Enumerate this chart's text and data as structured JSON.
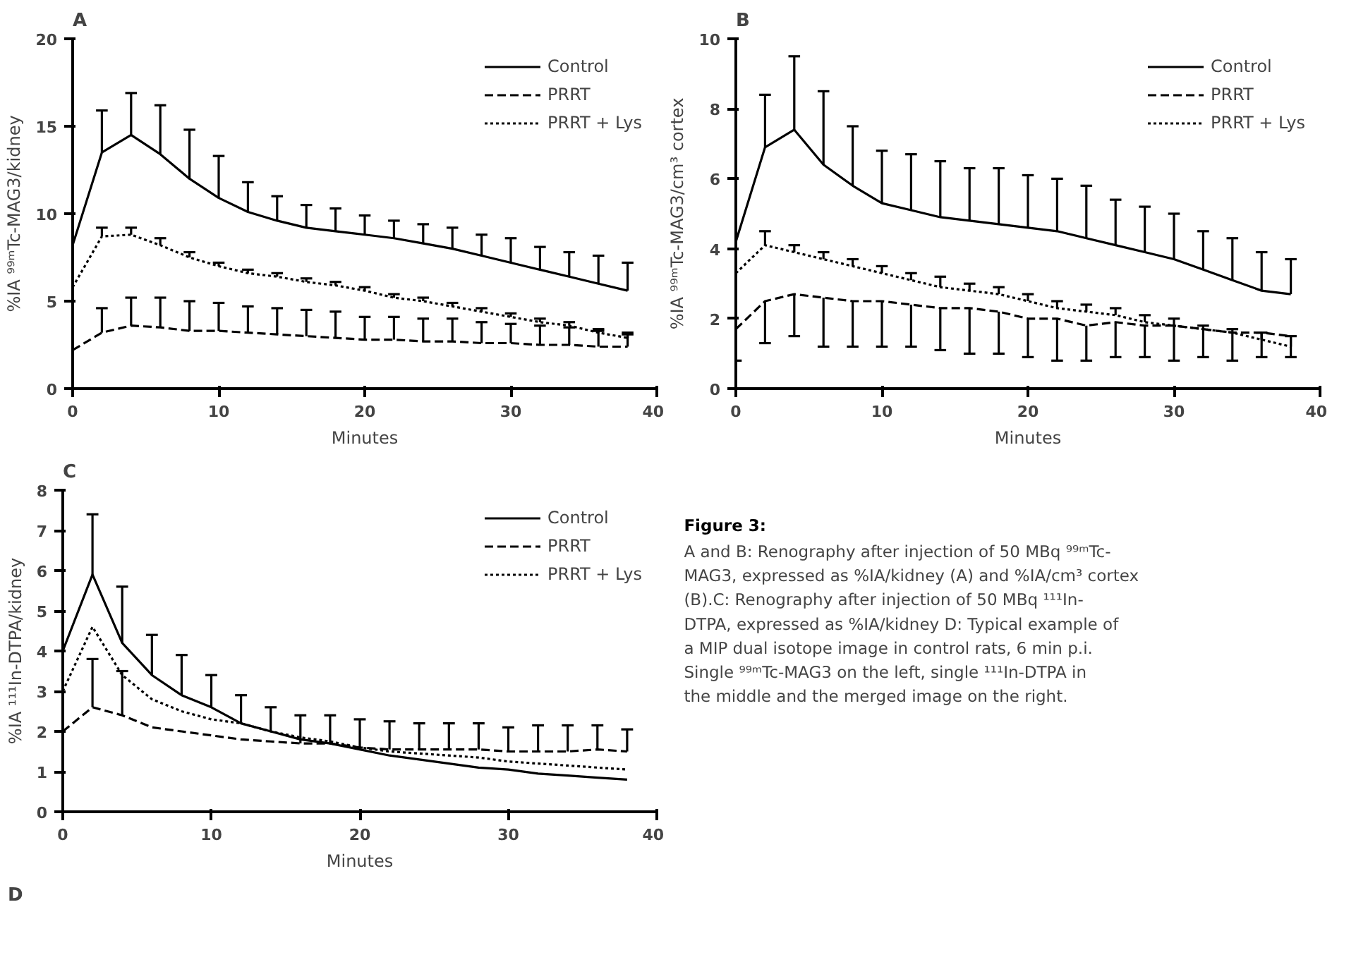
{
  "chart_data": [
    {
      "type": "line",
      "title": "A",
      "xlabel": "Minutes",
      "ylabel": "%IA ⁹⁹ᵐTc-MAG3/kidney",
      "x": [
        0,
        2,
        4,
        6,
        8,
        10,
        12,
        14,
        16,
        18,
        20,
        22,
        24,
        26,
        28,
        30,
        32,
        34,
        36,
        38
      ],
      "xlim": [
        0,
        40
      ],
      "xticks": [
        0,
        10,
        20,
        30,
        40
      ],
      "ylim": [
        0,
        20
      ],
      "yticks": [
        0,
        5,
        10,
        15,
        20
      ],
      "grid": false,
      "legend": "top right",
      "series": [
        {
          "name": "Control",
          "color": "#000000",
          "line_style": "solid",
          "values": [
            8.2,
            13.5,
            14.5,
            13.4,
            12.0,
            10.9,
            10.1,
            9.6,
            9.2,
            9.0,
            8.8,
            8.6,
            8.3,
            8.0,
            7.6,
            7.2,
            6.8,
            6.4,
            6.0,
            5.6
          ],
          "errors": [
            null,
            [
              13.5,
              15.9
            ],
            [
              14.5,
              16.9
            ],
            [
              13.4,
              16.2
            ],
            [
              12.0,
              14.8
            ],
            [
              10.9,
              13.3
            ],
            [
              10.1,
              11.8
            ],
            [
              9.6,
              11.0
            ],
            [
              9.2,
              10.5
            ],
            [
              9.0,
              10.3
            ],
            [
              8.8,
              9.9
            ],
            [
              8.6,
              9.6
            ],
            [
              8.3,
              9.4
            ],
            [
              8.0,
              9.2
            ],
            [
              7.6,
              8.8
            ],
            [
              7.2,
              8.6
            ],
            [
              6.8,
              8.1
            ],
            [
              6.4,
              7.8
            ],
            [
              6.0,
              7.6
            ],
            [
              5.6,
              7.2
            ]
          ]
        },
        {
          "name": "PRRT",
          "color": "#000000",
          "line_style": "dashed",
          "values": [
            2.2,
            3.2,
            3.6,
            3.5,
            3.3,
            3.3,
            3.2,
            3.1,
            3.0,
            2.9,
            2.8,
            2.8,
            2.7,
            2.7,
            2.6,
            2.6,
            2.5,
            2.5,
            2.4,
            2.4
          ],
          "errors": [
            null,
            [
              3.2,
              4.6
            ],
            [
              3.6,
              5.2
            ],
            [
              3.5,
              5.2
            ],
            [
              3.3,
              5.0
            ],
            [
              3.3,
              4.9
            ],
            [
              3.2,
              4.7
            ],
            [
              3.1,
              4.6
            ],
            [
              3.0,
              4.5
            ],
            [
              2.9,
              4.4
            ],
            [
              2.8,
              4.1
            ],
            [
              2.8,
              4.1
            ],
            [
              2.7,
              4.0
            ],
            [
              2.7,
              4.0
            ],
            [
              2.6,
              3.8
            ],
            [
              2.6,
              3.7
            ],
            [
              2.5,
              3.6
            ],
            [
              2.5,
              3.5
            ],
            [
              2.4,
              3.3
            ],
            [
              2.4,
              3.1
            ]
          ]
        },
        {
          "name": "PRRT + Lys",
          "color": "#000000",
          "line_style": "dotted",
          "values": [
            5.8,
            8.7,
            8.8,
            8.2,
            7.5,
            7.0,
            6.6,
            6.4,
            6.1,
            5.9,
            5.6,
            5.2,
            5.0,
            4.7,
            4.4,
            4.1,
            3.8,
            3.6,
            3.2,
            2.9
          ],
          "errors": [
            null,
            [
              8.7,
              9.2
            ],
            [
              8.8,
              9.2
            ],
            [
              8.2,
              8.6
            ],
            [
              7.5,
              7.8
            ],
            [
              7.0,
              7.2
            ],
            [
              6.6,
              6.8
            ],
            [
              6.4,
              6.6
            ],
            [
              6.1,
              6.3
            ],
            [
              5.9,
              6.1
            ],
            [
              5.6,
              5.8
            ],
            [
              5.2,
              5.4
            ],
            [
              5.0,
              5.2
            ],
            [
              4.7,
              4.9
            ],
            [
              4.4,
              4.6
            ],
            [
              4.1,
              4.3
            ],
            [
              3.8,
              4.0
            ],
            [
              3.6,
              3.8
            ],
            [
              3.2,
              3.4
            ],
            [
              2.9,
              3.2
            ]
          ]
        }
      ]
    },
    {
      "type": "line",
      "title": "B",
      "xlabel": "Minutes",
      "ylabel": "%IA ⁹⁹ᵐTc-MAG3/cm³ cortex",
      "x": [
        0,
        2,
        4,
        6,
        8,
        10,
        12,
        14,
        16,
        18,
        20,
        22,
        24,
        26,
        28,
        30,
        32,
        34,
        36,
        38
      ],
      "xlim": [
        0,
        40
      ],
      "xticks": [
        0,
        10,
        20,
        30,
        40
      ],
      "ylim": [
        0,
        10
      ],
      "yticks": [
        0,
        2,
        4,
        6,
        8,
        10
      ],
      "grid": false,
      "legend": "top right",
      "series": [
        {
          "name": "Control",
          "color": "#000000",
          "line_style": "solid",
          "values": [
            4.2,
            6.9,
            7.4,
            6.4,
            5.8,
            5.3,
            5.1,
            4.9,
            4.8,
            4.7,
            4.6,
            4.5,
            4.3,
            4.1,
            3.9,
            3.7,
            3.4,
            3.1,
            2.8,
            2.7
          ],
          "errors": [
            null,
            [
              6.9,
              8.4
            ],
            [
              7.4,
              9.5
            ],
            [
              6.4,
              8.5
            ],
            [
              5.8,
              7.5
            ],
            [
              5.3,
              6.8
            ],
            [
              5.1,
              6.7
            ],
            [
              4.9,
              6.5
            ],
            [
              4.8,
              6.3
            ],
            [
              4.7,
              6.3
            ],
            [
              4.6,
              6.1
            ],
            [
              4.5,
              6.0
            ],
            [
              4.3,
              5.8
            ],
            [
              4.1,
              5.4
            ],
            [
              3.9,
              5.2
            ],
            [
              3.7,
              5.0
            ],
            [
              3.4,
              4.5
            ],
            [
              3.1,
              4.3
            ],
            [
              2.8,
              3.9
            ],
            [
              2.7,
              3.7
            ]
          ]
        },
        {
          "name": "PRRT",
          "color": "#000000",
          "line_style": "dashed",
          "values": [
            1.7,
            2.5,
            2.7,
            2.6,
            2.5,
            2.5,
            2.4,
            2.3,
            2.3,
            2.2,
            2.0,
            2.0,
            1.8,
            1.9,
            1.8,
            1.8,
            1.7,
            1.6,
            1.6,
            1.5
          ],
          "errors": [
            [
              0.8,
              1.7
            ],
            [
              1.3,
              2.5
            ],
            [
              1.5,
              2.7
            ],
            [
              1.2,
              2.6
            ],
            [
              1.2,
              2.5
            ],
            [
              1.2,
              2.5
            ],
            [
              1.2,
              2.4
            ],
            [
              1.1,
              2.3
            ],
            [
              1.0,
              2.3
            ],
            [
              1.0,
              2.2
            ],
            [
              0.9,
              2.0
            ],
            [
              0.8,
              2.0
            ],
            [
              0.8,
              1.8
            ],
            [
              0.9,
              1.9
            ],
            [
              0.9,
              1.8
            ],
            [
              0.8,
              1.8
            ],
            [
              0.9,
              1.7
            ],
            [
              0.8,
              1.6
            ],
            [
              0.9,
              1.6
            ],
            [
              0.9,
              1.5
            ]
          ]
        },
        {
          "name": "PRRT + Lys",
          "color": "#000000",
          "line_style": "dotted",
          "values": [
            3.3,
            4.1,
            3.9,
            3.7,
            3.5,
            3.3,
            3.1,
            2.9,
            2.8,
            2.7,
            2.5,
            2.3,
            2.2,
            2.1,
            1.9,
            1.8,
            1.7,
            1.6,
            1.4,
            1.2
          ],
          "errors": [
            null,
            [
              4.1,
              4.5
            ],
            [
              3.9,
              4.1
            ],
            [
              3.7,
              3.9
            ],
            [
              3.5,
              3.7
            ],
            [
              3.3,
              3.5
            ],
            [
              3.1,
              3.3
            ],
            [
              2.9,
              3.2
            ],
            [
              2.8,
              3.0
            ],
            [
              2.7,
              2.9
            ],
            [
              2.5,
              2.7
            ],
            [
              2.3,
              2.5
            ],
            [
              2.2,
              2.4
            ],
            [
              2.1,
              2.3
            ],
            [
              1.9,
              2.1
            ],
            [
              1.8,
              2.0
            ],
            [
              1.7,
              1.8
            ],
            [
              1.6,
              1.7
            ],
            [
              1.4,
              1.6
            ],
            [
              1.2,
              1.5
            ]
          ]
        }
      ]
    },
    {
      "type": "line",
      "title": "C",
      "xlabel": "Minutes",
      "ylabel": "%IA ¹¹¹In-DTPA/kidney",
      "x": [
        0,
        2,
        4,
        6,
        8,
        10,
        12,
        14,
        16,
        18,
        20,
        22,
        24,
        26,
        28,
        30,
        32,
        34,
        36,
        38
      ],
      "xlim": [
        0,
        40
      ],
      "xticks": [
        0,
        10,
        20,
        30,
        40
      ],
      "ylim": [
        0,
        8
      ],
      "yticks": [
        0,
        1,
        2,
        3,
        4,
        5,
        6,
        7,
        8
      ],
      "grid": false,
      "legend": "top right",
      "series": [
        {
          "name": "Control",
          "color": "#000000",
          "line_style": "solid",
          "values": [
            4.0,
            5.9,
            4.2,
            3.4,
            2.9,
            2.6,
            2.2,
            2.0,
            1.8,
            1.7,
            1.55,
            1.4,
            1.3,
            1.2,
            1.1,
            1.05,
            0.95,
            0.9,
            0.85,
            0.8
          ],
          "errors": [
            null,
            [
              5.9,
              7.4
            ],
            [
              4.2,
              5.6
            ],
            [
              3.4,
              4.4
            ],
            [
              2.9,
              3.9
            ],
            [
              2.6,
              3.4
            ],
            [
              2.2,
              2.9
            ],
            [
              2.0,
              2.6
            ],
            null,
            null,
            null,
            null,
            null,
            null,
            null,
            null,
            null,
            null,
            null,
            null
          ]
        },
        {
          "name": "PRRT",
          "color": "#000000",
          "line_style": "dashed",
          "values": [
            2.0,
            2.6,
            2.4,
            2.1,
            2.0,
            1.9,
            1.8,
            1.75,
            1.7,
            1.7,
            1.6,
            1.55,
            1.55,
            1.55,
            1.55,
            1.5,
            1.5,
            1.5,
            1.55,
            1.5
          ],
          "errors": [
            null,
            [
              2.6,
              3.8
            ],
            [
              2.4,
              3.5
            ],
            null,
            null,
            null,
            null,
            null,
            [
              1.7,
              2.4
            ],
            [
              1.7,
              2.4
            ],
            [
              1.6,
              2.3
            ],
            [
              1.55,
              2.25
            ],
            [
              1.55,
              2.2
            ],
            [
              1.55,
              2.2
            ],
            [
              1.55,
              2.2
            ],
            [
              1.5,
              2.1
            ],
            [
              1.5,
              2.15
            ],
            [
              1.5,
              2.15
            ],
            [
              1.55,
              2.15
            ],
            [
              1.5,
              2.05
            ]
          ]
        },
        {
          "name": "PRRT + Lys",
          "color": "#000000",
          "line_style": "dotted",
          "values": [
            3.0,
            4.6,
            3.4,
            2.8,
            2.5,
            2.3,
            2.2,
            2.0,
            1.85,
            1.75,
            1.6,
            1.5,
            1.45,
            1.4,
            1.35,
            1.25,
            1.2,
            1.15,
            1.1,
            1.05
          ]
        }
      ]
    },
    {
      "type": "other",
      "title": "Figure 3:",
      "annotations": [
        "A and B: Renography after injection of 50 MBq ⁹⁹ᵐTc-MAG3, expressed as %IA/kidney (A) and %IA/cm³ cortex (B).C: Renography after injection of 50 MBq ¹¹¹In-DTPA, expressed as %IA/kidney D: Typical example of a MIP dual isotope image in control rats, 6 min p.i. Single ⁹⁹ᵐTc-MAG3 on the left, single ¹¹¹In-DTPA in the middle and the merged image on the right."
      ]
    },
    {
      "type": "other",
      "title": "D"
    }
  ]
}
